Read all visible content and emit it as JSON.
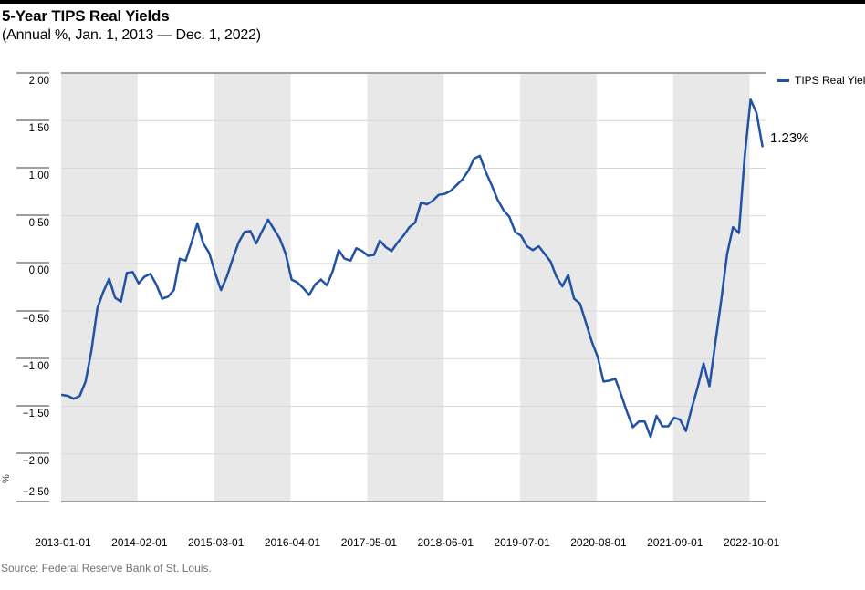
{
  "header": {
    "title": "5-Year TIPS Real Yields",
    "subtitle": "(Annual %, Jan. 1, 2013 — Dec. 1, 2022)"
  },
  "legend": {
    "label": "TIPS Real Yield"
  },
  "annotation": {
    "last_value_label": "1.23%"
  },
  "source": {
    "text": "Source: Federal Reserve Bank of St. Louis."
  },
  "colors": {
    "line": "#2152a3",
    "band_gray": "#e8e8e8",
    "gridline": "#d9d9d9",
    "plot_border": "#9e9e9e",
    "source_text": "#737373",
    "top_rule": "#000000"
  },
  "chart_data": {
    "type": "line",
    "title": "5-Year TIPS Real Yields",
    "units": "Annual %",
    "frequency": "monthly",
    "x_start": "2013-01-01",
    "x_end": "2022-12-01",
    "ylim": [
      -2.5,
      2.0
    ],
    "grid": "horizontal",
    "background_bands_months": 13,
    "legend_position": "top-right",
    "y_axis": {
      "unit_label": "%",
      "ticks": [
        "2.00",
        "1.50",
        "1.00",
        "0.50",
        "0.00",
        "−0.50",
        "−1.00",
        "−1.50",
        "−2.00",
        "−2.50"
      ]
    },
    "x_axis": {
      "ticks": [
        "2013-01-01",
        "2014-02-01",
        "2015-03-01",
        "2016-04-01",
        "2017-05-01",
        "2018-06-01",
        "2019-07-01",
        "2020-08-01",
        "2021-09-01",
        "2022-10-01"
      ]
    },
    "series": [
      {
        "name": "TIPS Real Yield",
        "values": [
          -1.38,
          -1.39,
          -1.42,
          -1.39,
          -1.24,
          -0.91,
          -0.47,
          -0.3,
          -0.16,
          -0.36,
          -0.4,
          -0.1,
          -0.09,
          -0.21,
          -0.14,
          -0.11,
          -0.22,
          -0.37,
          -0.35,
          -0.28,
          0.05,
          0.03,
          0.22,
          0.42,
          0.21,
          0.11,
          -0.1,
          -0.28,
          -0.14,
          0.05,
          0.22,
          0.33,
          0.34,
          0.21,
          0.34,
          0.46,
          0.36,
          0.26,
          0.1,
          -0.17,
          -0.2,
          -0.26,
          -0.33,
          -0.22,
          -0.17,
          -0.23,
          -0.08,
          0.14,
          0.05,
          0.03,
          0.16,
          0.13,
          0.08,
          0.09,
          0.24,
          0.17,
          0.13,
          0.22,
          0.29,
          0.38,
          0.43,
          0.64,
          0.62,
          0.66,
          0.72,
          0.73,
          0.76,
          0.82,
          0.88,
          0.97,
          1.1,
          1.13,
          0.96,
          0.82,
          0.67,
          0.56,
          0.49,
          0.33,
          0.29,
          0.18,
          0.14,
          0.18,
          0.1,
          0.02,
          -0.14,
          -0.24,
          -0.12,
          -0.37,
          -0.42,
          -0.62,
          -0.82,
          -0.98,
          -1.24,
          -1.23,
          -1.21,
          -1.38,
          -1.56,
          -1.72,
          -1.66,
          -1.66,
          -1.82,
          -1.6,
          -1.71,
          -1.71,
          -1.62,
          -1.64,
          -1.76,
          -1.52,
          -1.3,
          -1.05,
          -1.29,
          -0.83,
          -0.39,
          0.1,
          0.38,
          0.32,
          1.13,
          1.72,
          1.58,
          1.23
        ]
      }
    ]
  }
}
